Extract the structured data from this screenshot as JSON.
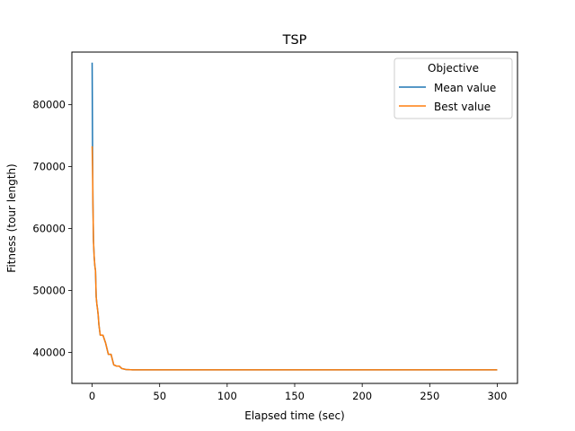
{
  "chart_data": {
    "type": "line",
    "title": "TSP",
    "xlabel": "Elapsed time (sec)",
    "ylabel": "Fitness (tour length)",
    "xlim": [
      -15,
      315
    ],
    "ylim": [
      35000,
      88500
    ],
    "xticks": [
      0,
      50,
      100,
      150,
      200,
      250,
      300
    ],
    "yticks": [
      40000,
      50000,
      60000,
      70000,
      80000
    ],
    "xtick_labels": [
      "0",
      "50",
      "100",
      "150",
      "200",
      "250",
      "300"
    ],
    "ytick_labels": [
      "40000",
      "50000",
      "60000",
      "70000",
      "80000"
    ],
    "grid": false,
    "legend": {
      "title": "Objective",
      "placement": "top-right"
    },
    "series": [
      {
        "name": "Mean value",
        "color": "#1f77b4",
        "x": [
          0,
          0.3,
          0.6,
          1,
          1.5,
          2,
          2.5,
          3,
          3.5,
          4,
          4.5,
          5,
          6,
          7,
          8,
          10,
          12,
          14,
          16,
          18,
          20,
          22,
          25,
          30,
          40,
          60,
          100,
          150,
          200,
          250,
          300
        ],
        "y": [
          86800,
          73500,
          64000,
          58000,
          55500,
          54000,
          53200,
          49000,
          47800,
          47000,
          46000,
          44500,
          42800,
          42800,
          42800,
          41500,
          39700,
          39700,
          38000,
          37800,
          37800,
          37400,
          37250,
          37200,
          37200,
          37200,
          37200,
          37200,
          37200,
          37200,
          37200
        ]
      },
      {
        "name": "Best value",
        "color": "#ff7f0e",
        "x": [
          0,
          0.3,
          0.6,
          1,
          1.5,
          2,
          2.5,
          3,
          3.5,
          4,
          4.5,
          5,
          6,
          7,
          8,
          10,
          12,
          14,
          16,
          18,
          20,
          22,
          25,
          30,
          40,
          60,
          100,
          150,
          200,
          250,
          300
        ],
        "y": [
          73300,
          70000,
          64000,
          58000,
          55500,
          54000,
          53200,
          49000,
          47800,
          47000,
          46000,
          44500,
          42800,
          42800,
          42800,
          41500,
          39700,
          39700,
          38000,
          37800,
          37800,
          37400,
          37250,
          37200,
          37200,
          37200,
          37200,
          37200,
          37200,
          37200,
          37200
        ]
      }
    ]
  }
}
